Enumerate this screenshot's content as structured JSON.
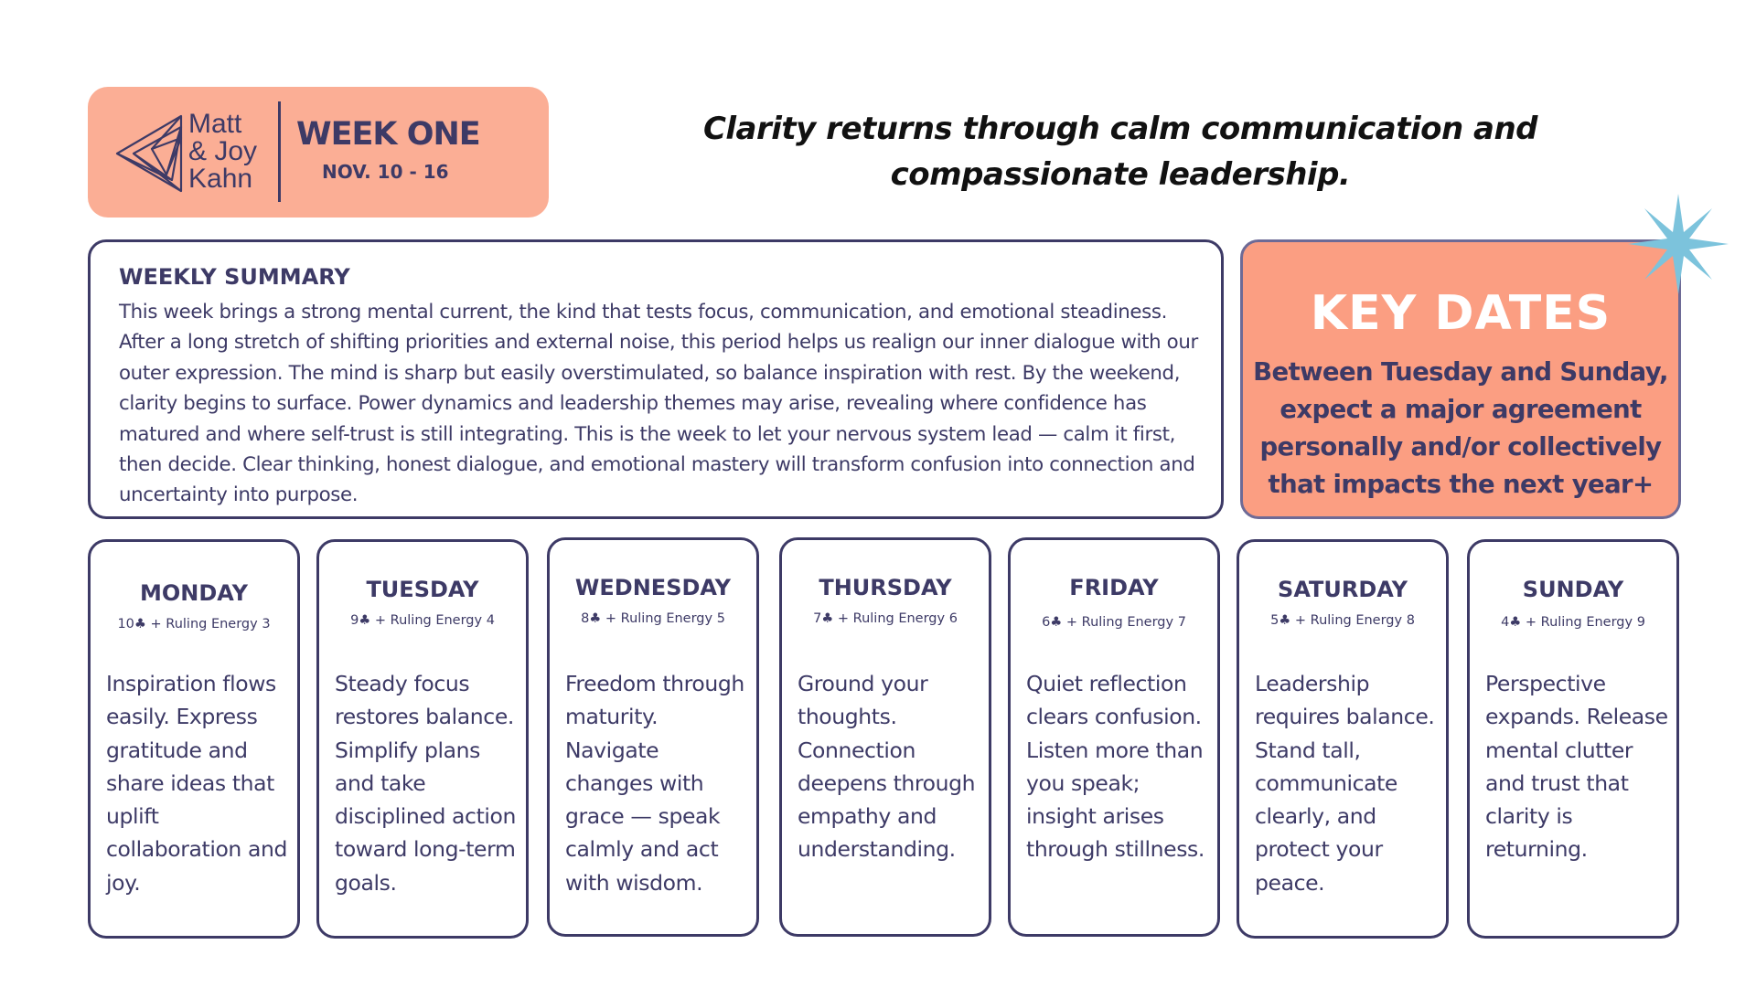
{
  "brand": {
    "line1": "Matt",
    "line2": "& Joy",
    "line3": "Kahn",
    "logo_icon": "triangle-mandala-icon"
  },
  "header": {
    "week_title": "WEEK ONE",
    "dates": "NOV. 10 - 16"
  },
  "tagline": "Clarity returns through calm communication and compassionate leadership.",
  "summary": {
    "title": "WEEKLY SUMMARY",
    "text": "This week brings a strong mental current, the kind that tests focus, communication, and emotional steadiness. After a long stretch of shifting priorities and external noise, this period helps us realign our inner dialogue with our outer expression. The mind is sharp but easily overstimulated, so balance inspiration with rest. By the weekend, clarity begins to surface. Power dynamics and leadership themes may arise, revealing where confidence has matured and where self-trust is still integrating. This is the week to let your nervous system lead — calm it first, then decide. Clear thinking, honest dialogue, and emotional mastery will transform confusion into connection and uncertainty into purpose."
  },
  "key_dates": {
    "title": "KEY DATES",
    "text": "Between Tuesday and Sunday, expect a major agreement personally and/or collectively that impacts the next year+"
  },
  "days": [
    {
      "name": "MONDAY",
      "energy": "10♣ + Ruling Energy 3",
      "text": "Inspiration flows easily. Express gratitude and share ideas that uplift collaboration and joy."
    },
    {
      "name": "TUESDAY",
      "energy": "9♣ + Ruling Energy 4",
      "text": "Steady focus restores balance. Simplify plans and take disciplined action toward long-term goals."
    },
    {
      "name": "WEDNESDAY",
      "energy": "8♣ +  Ruling Energy 5",
      "text": "Freedom through maturity. Navigate changes with grace — speak calmly and act with wisdom."
    },
    {
      "name": "THURSDAY",
      "energy": "7♣ + Ruling Energy 6",
      "text": "Ground your thoughts. Connection deepens through empathy and understanding."
    },
    {
      "name": "FRIDAY",
      "energy": "6♣ + Ruling Energy 7",
      "text": "Quiet reflection clears confusion. Listen more than you speak; insight arises through stillness."
    },
    {
      "name": "SATURDAY",
      "energy": "5♣ + Ruling Energy 8",
      "text": "Leadership requires balance. Stand tall, communicate clearly, and protect your peace."
    },
    {
      "name": "SUNDAY",
      "energy": "4♣ + Ruling Energy 9",
      "text": "Perspective expands. Release mental clutter and trust that clarity is returning."
    }
  ],
  "colors": {
    "navy": "#3d3a66",
    "header_peach": "#fbae95",
    "key_coral": "#fb9e82",
    "star_blue": "#7cc3dc"
  },
  "decor": {
    "star": "sparkle-star-icon"
  }
}
